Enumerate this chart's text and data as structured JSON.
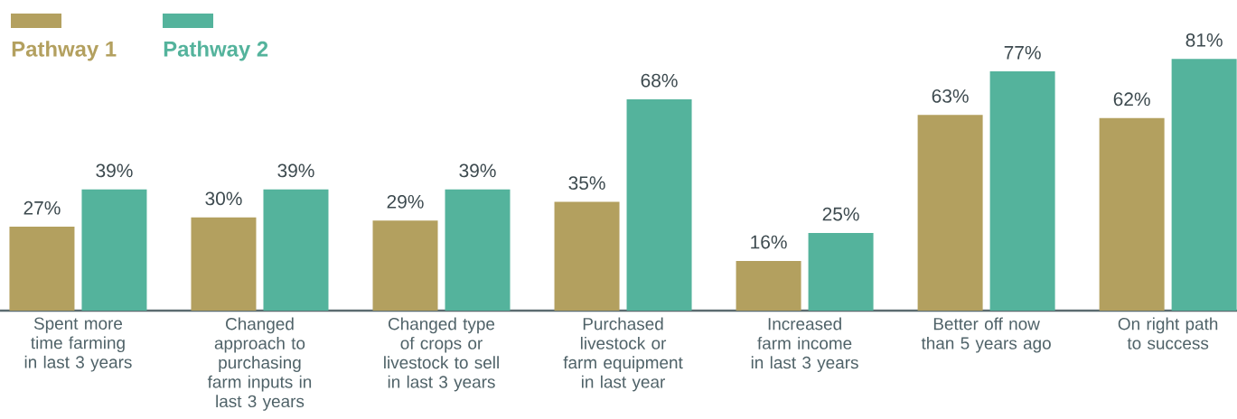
{
  "chart_data": {
    "type": "bar",
    "categories": [
      "Spent more time farming in last 3 years",
      "Changed approach to purchasing farm inputs in last 3 years",
      "Changed type of crops or livestock to sell in last 3 years",
      "Purchased livestock or farm equipment in last year",
      "Increased farm income in last 3 years",
      "Better off now than 5 years ago",
      "On right path to success"
    ],
    "series": [
      {
        "name": "Pathway 1",
        "color": "#b3a05f",
        "values": [
          27,
          30,
          29,
          35,
          16,
          63,
          62
        ],
        "value_labels": [
          "27%",
          "30%",
          "29%",
          "35%",
          "16%",
          "63%",
          "62%"
        ]
      },
      {
        "name": "Pathway 2",
        "color": "#54b39c",
        "values": [
          39,
          39,
          39,
          68,
          25,
          77,
          81
        ],
        "value_labels": [
          "39%",
          "39%",
          "39%",
          "68%",
          "25%",
          "77%",
          "81%"
        ]
      }
    ],
    "legend": "top left"
  }
}
